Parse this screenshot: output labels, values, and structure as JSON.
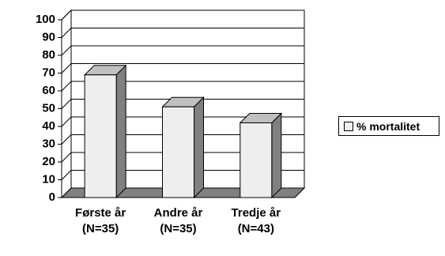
{
  "chart_data": {
    "type": "bar",
    "categories": [
      "Første år\n(N=35)",
      "Andre år\n(N=35)",
      "Tredje år\n(N=43)"
    ],
    "series": [
      {
        "name": "% mortalitet",
        "color": "#eeeeee",
        "values": [
          69,
          51,
          42
        ]
      }
    ],
    "ylim": [
      0,
      100
    ],
    "yticks": [
      0,
      10,
      20,
      30,
      40,
      50,
      60,
      70,
      80,
      90,
      100
    ],
    "grid": true,
    "legend": "right"
  }
}
